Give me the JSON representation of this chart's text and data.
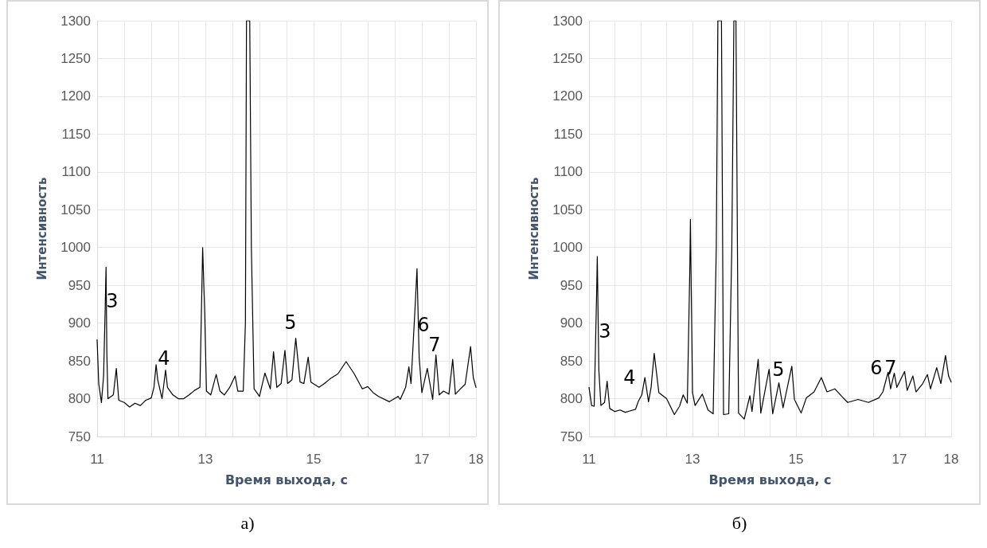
{
  "chart_data": [
    {
      "type": "line",
      "xlabel": "Время выхода, с",
      "ylabel": "Интенсивность",
      "xlim": [
        11,
        18
      ],
      "ylim": [
        750,
        1300
      ],
      "xticks": [
        11,
        {
          "value": 11.5,
          "label": null
        },
        {
          "value": 12,
          "label": null
        },
        {
          "value": 12.5,
          "label": null
        },
        13,
        {
          "value": 13.5,
          "label": null
        },
        {
          "value": 14,
          "label": null
        },
        {
          "value": 14.5,
          "label": null
        },
        15,
        {
          "value": 15.5,
          "label": null
        },
        {
          "value": 16,
          "label": null
        },
        {
          "value": 16.5,
          "label": null
        },
        17,
        {
          "value": 17.5,
          "label": null
        },
        18
      ],
      "yticks": [
        750,
        800,
        850,
        900,
        950,
        1000,
        1050,
        1100,
        1150,
        1200,
        1250,
        1300
      ],
      "grid": true,
      "marker": "none",
      "line_style": "solid",
      "series": [
        {
          "color": "#000000",
          "x": [
            11,
            11.03,
            11.08,
            11.12,
            11.15,
            11.165,
            11.18,
            11.2,
            11.3,
            11.355,
            11.4,
            11.5,
            11.6,
            11.7,
            11.8,
            11.9,
            12.0,
            12.05,
            12.09,
            12.12,
            12.2,
            12.265,
            12.3,
            12.4,
            12.5,
            12.6,
            12.7,
            12.8,
            12.9,
            12.95,
            12.99,
            13.02,
            13.1,
            13.2,
            13.27,
            13.35,
            13.45,
            13.55,
            13.6,
            13.7,
            13.74,
            13.76,
            13.82,
            13.85,
            13.9,
            14.0,
            14.1,
            14.2,
            14.26,
            14.32,
            14.4,
            14.47,
            14.52,
            14.6,
            14.67,
            14.75,
            14.82,
            14.9,
            14.95,
            15.1,
            15.2,
            15.3,
            15.45,
            15.6,
            15.75,
            15.9,
            16.0,
            16.1,
            16.2,
            16.4,
            16.56,
            16.6,
            16.7,
            16.76,
            16.8,
            16.88,
            16.91,
            16.95,
            17.0,
            17.1,
            17.2,
            17.26,
            17.32,
            17.4,
            17.5,
            17.57,
            17.62,
            17.7,
            17.8,
            17.9,
            17.95,
            18
          ],
          "values": [
            878,
            820,
            795,
            830,
            922,
            974,
            860,
            800,
            805,
            840,
            798,
            795,
            789,
            794,
            791,
            798,
            801,
            815,
            845,
            825,
            800,
            838,
            815,
            805,
            800,
            800,
            805,
            811,
            815,
            1000,
            908,
            810,
            805,
            832,
            810,
            805,
            815,
            830,
            810,
            810,
            900,
            1300,
            1300,
            1000,
            813,
            803,
            834,
            813,
            862,
            815,
            820,
            864,
            820,
            825,
            880,
            822,
            820,
            855,
            822,
            815,
            820,
            826,
            833,
            849,
            833,
            813,
            816,
            808,
            803,
            796,
            803,
            799,
            815,
            842,
            820,
            928,
            972,
            855,
            808,
            840,
            799,
            858,
            805,
            810,
            806,
            852,
            806,
            812,
            819,
            869,
            828,
            815
          ]
        }
      ],
      "annotations": [
        "3",
        "4",
        "5",
        "6",
        "7",
        "а)"
      ]
    },
    {
      "type": "line",
      "xlabel": "Время выхода, с",
      "ylabel": "Интенсивность",
      "xlim": [
        11,
        18
      ],
      "ylim": [
        750,
        1300
      ],
      "xticks": [
        11,
        {
          "value": 11.5,
          "label": null
        },
        {
          "value": 12,
          "label": null
        },
        {
          "value": 12.5,
          "label": null
        },
        13,
        {
          "value": 13.5,
          "label": null
        },
        {
          "value": 14,
          "label": null
        },
        {
          "value": 14.5,
          "label": null
        },
        15,
        {
          "value": 15.5,
          "label": null
        },
        {
          "value": 16,
          "label": null
        },
        {
          "value": 16.5,
          "label": null
        },
        17,
        {
          "value": 17.5,
          "label": null
        },
        18
      ],
      "yticks": [
        750,
        800,
        850,
        900,
        950,
        1000,
        1050,
        1100,
        1150,
        1200,
        1250,
        1300
      ],
      "grid": true,
      "marker": "none",
      "line_style": "solid",
      "series": [
        {
          "color": "#000000",
          "x": [
            11,
            11.05,
            11.1,
            11.15,
            11.16,
            11.19,
            11.23,
            11.3,
            11.35,
            11.4,
            11.5,
            11.6,
            11.7,
            11.8,
            11.9,
            11.95,
            12.02,
            12.08,
            12.15,
            12.2,
            12.26,
            12.35,
            12.5,
            12.65,
            12.75,
            12.82,
            12.9,
            12.95,
            12.96,
            13.0,
            13.05,
            13.19,
            13.3,
            13.4,
            13.46,
            13.49,
            13.56,
            13.6,
            13.7,
            13.76,
            13.8,
            13.84,
            13.89,
            14.0,
            14.11,
            14.15,
            14.27,
            14.32,
            14.48,
            14.55,
            14.67,
            14.75,
            14.92,
            14.97,
            15.1,
            15.2,
            15.35,
            15.49,
            15.6,
            15.75,
            15.9,
            16.0,
            16.2,
            16.4,
            16.6,
            16.68,
            16.78,
            16.83,
            16.9,
            16.95,
            17.1,
            17.15,
            17.26,
            17.32,
            17.45,
            17.54,
            17.6,
            17.72,
            17.8,
            17.89,
            17.95,
            18
          ],
          "values": [
            815,
            791,
            790,
            949,
            988,
            838,
            791,
            795,
            823,
            787,
            783,
            785,
            782,
            784,
            786,
            796,
            805,
            828,
            796,
            815,
            860,
            808,
            800,
            779,
            790,
            805,
            794,
            979,
            1037,
            808,
            791,
            806,
            785,
            780,
            1000,
            1300,
            1300,
            779,
            780,
            1000,
            1300,
            1300,
            781,
            773,
            804,
            783,
            852,
            781,
            839,
            780,
            821,
            788,
            843,
            799,
            781,
            801,
            809,
            828,
            809,
            813,
            802,
            795,
            799,
            795,
            801,
            809,
            835,
            813,
            834,
            815,
            836,
            811,
            830,
            809,
            820,
            832,
            813,
            841,
            820,
            857,
            830,
            822
          ]
        }
      ],
      "annotations": [
        "3",
        "4",
        "5",
        "6",
        "7",
        "б)"
      ]
    }
  ]
}
